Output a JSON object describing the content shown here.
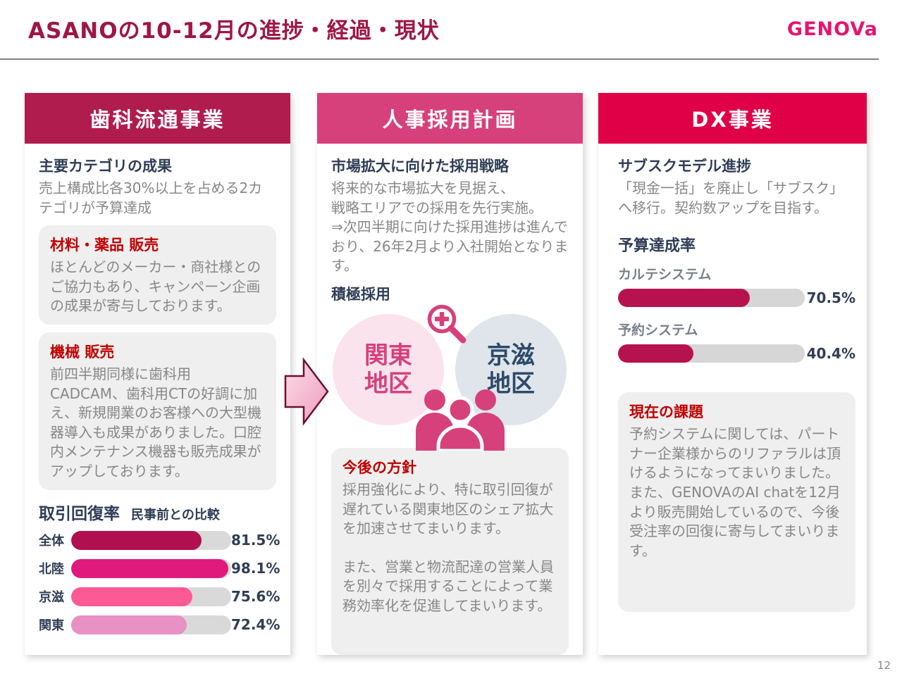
{
  "slide": {
    "title": "ASANOの10-12月の進捗・経過・現状",
    "logo_text": "GENOVa",
    "page_number": "12"
  },
  "colors": {
    "title_text": "#9e1744",
    "logo_pink": "#e5156e",
    "header1": "#b01c4e",
    "header2": "#d6417b",
    "header3": "#e00048",
    "accent_pink": "#d6417b",
    "navy_text": "#2f3d56",
    "red_box_title": "#c00000",
    "dx_bar": "#b5124f"
  },
  "col1": {
    "header": "歯科流通事業",
    "section_title": "主要カテゴリの成果",
    "section_text": "売上構成比各30%以上を占める2カテゴリが予算達成",
    "card1_title": "材料・薬品 販売",
    "card1_text": "ほとんどのメーカー・商社様とのご協力もあり、キャンペーン企画の成果が寄与しております。",
    "card2_title": "機械 販売",
    "card2_text": "前四半期同様に歯科用CADCAM、歯科用CTの好調に加え、新規開業のお客様への大型機器導入も成果がありました。口腔内メンテナンス機器も販売成果がアップしております。",
    "chart_title": "取引回復率",
    "chart_subtitle": "民事前との比較",
    "bars": [
      {
        "label": "全体",
        "value": 81.5,
        "display": "81.5%",
        "color": "#b00f50"
      },
      {
        "label": "北陸",
        "value": 98.1,
        "display": "98.1%",
        "color": "#e0197d"
      },
      {
        "label": "京滋",
        "value": 75.6,
        "display": "75.6%",
        "color": "#fb5a95"
      },
      {
        "label": "関東",
        "value": 72.4,
        "display": "72.4%",
        "color": "#e891c4"
      }
    ]
  },
  "col2": {
    "header": "人事採用計画",
    "section_title": "市場拡大に向けた採用戦略",
    "section_text": "将来的な市場拡大を見据え、\n戦略エリアでの採用を先行実施。\n⇒次四半期に向けた採用進捗は進んでおり、26年2月より入社開始となります。",
    "active_title": "積極採用",
    "venn_left": "関東\n地区",
    "venn_right": "京滋\n地区",
    "policy_title": "今後の方針",
    "policy_text1": "採用強化により、特に取引回復が遅れている関東地区のシェア拡大を加速させてまいります。",
    "policy_text2": "また、営業と物流配達の営業人員を別々で採用することによって業務効率化を促進してまいります。"
  },
  "col3": {
    "header": "DX事業",
    "section_title": "サブスクモデル進捗",
    "section_text": "「現金一括」を廃止し「サブスク」へ移行。契約数アップを目指す。",
    "progress_title": "予算達成率",
    "bars": [
      {
        "label": "カルテシステム",
        "value": 70.5,
        "display": "70.5%",
        "color": "#b5124f"
      },
      {
        "label": "予約システム",
        "value": 40.4,
        "display": "40.4%",
        "color": "#b5124f"
      }
    ],
    "issue_title": "現在の課題",
    "issue_text": "予約システムに関しては、パートナー企業様からのリファラルは頂けるようになってまいりました。また、GENOVAのAI chatを12月より販売開始しているので、今後受注率の回復に寄与してまいります。"
  },
  "chart_data": [
    {
      "type": "bar",
      "title": "取引回復率 民事前との比較",
      "categories": [
        "全体",
        "北陸",
        "京滋",
        "関東"
      ],
      "values": [
        81.5,
        98.1,
        75.6,
        72.4
      ],
      "unit": "%",
      "xlim": [
        0,
        100
      ],
      "orientation": "horizontal",
      "bar_colors": [
        "#b00f50",
        "#e0197d",
        "#fb5a95",
        "#e891c4"
      ]
    },
    {
      "type": "bar",
      "title": "予算達成率",
      "categories": [
        "カルテシステム",
        "予約システム"
      ],
      "values": [
        70.5,
        40.4
      ],
      "unit": "%",
      "xlim": [
        0,
        100
      ],
      "orientation": "horizontal",
      "bar_colors": [
        "#b5124f",
        "#b5124f"
      ]
    }
  ]
}
